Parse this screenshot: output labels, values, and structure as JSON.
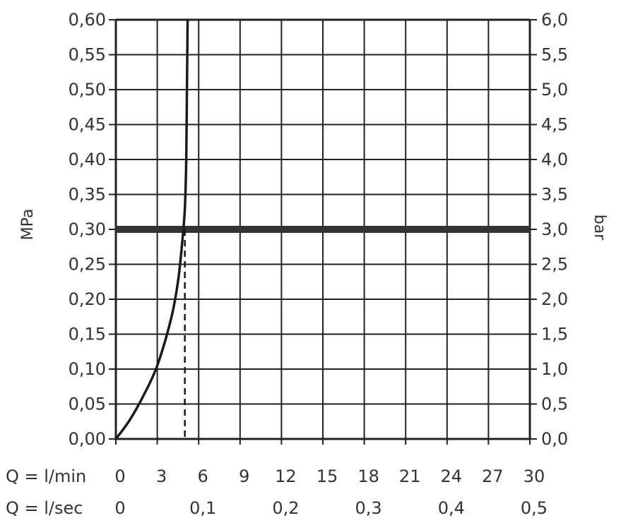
{
  "chart_data": {
    "type": "line",
    "left_axis": {
      "label": "MPa",
      "range": [
        0,
        0.6
      ],
      "ticks": [
        "0,00",
        "0,05",
        "0,10",
        "0,15",
        "0,20",
        "0,25",
        "0,30",
        "0,35",
        "0,40",
        "0,45",
        "0,50",
        "0,55",
        "0,60"
      ]
    },
    "right_axis": {
      "label": "bar",
      "range": [
        0,
        6
      ],
      "ticks": [
        "0,0",
        "0,5",
        "1,0",
        "1,5",
        "2,0",
        "2,5",
        "3,0",
        "3,5",
        "4,0",
        "4,5",
        "5,0",
        "5,5",
        "6,0"
      ]
    },
    "x_axis_min": {
      "label": "Q = l/min",
      "range": [
        0,
        30
      ],
      "ticks": [
        "0",
        "3",
        "6",
        "9",
        "12",
        "15",
        "18",
        "21",
        "24",
        "27",
        "30"
      ]
    },
    "x_axis_sec": {
      "label": "Q = l/sec",
      "ticks": [
        "0",
        "0,1",
        "0,2",
        "0,3",
        "0,4",
        "0,5"
      ]
    },
    "grid": true,
    "series": [
      {
        "x": [
          0,
          1,
          2,
          3,
          4,
          4.5,
          4.8,
          5,
          5.1,
          5.15,
          5.2
        ],
        "y": [
          0,
          0.027,
          0.062,
          0.105,
          0.172,
          0.225,
          0.28,
          0.33,
          0.4,
          0.5,
          0.6
        ]
      }
    ],
    "reference_line": {
      "y": 0.3
    },
    "marker_line": {
      "x": 5
    },
    "colors": {
      "curve": "#1a1a1a",
      "grid": "#222222",
      "reference": "#333333",
      "text": "#333333"
    }
  }
}
